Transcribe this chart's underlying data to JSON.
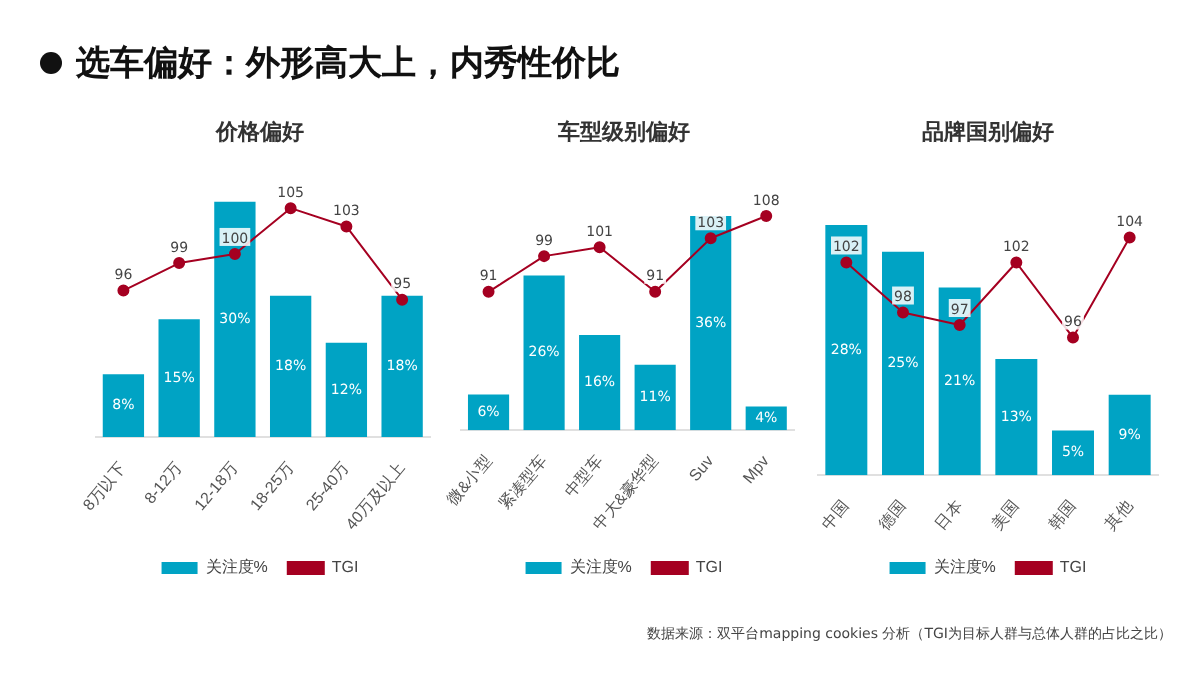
{
  "chart_data": [
    {
      "type": "bar",
      "title": "价格偏好",
      "categories": [
        "8万以下",
        "8-12万",
        "12-18万",
        "18-25万",
        "25-40万",
        "40万及以上"
      ],
      "legend": "bottom",
      "marker": "circle",
      "tick_labels": "x",
      "annotations": [
        "选车偏好：外形高大上，内秀性价比",
        "数据来源：双平台mapping cookies 分析（TGI为目标人群与总体人群的占比之比）"
      ],
      "series": [
        {
          "name": "关注度%",
          "color": "#00a3c4",
          "values": [
            8,
            15,
            30,
            18,
            12,
            18
          ],
          "value_labels": [
            "8%",
            "15%",
            "30%",
            "18%",
            "12%",
            "18%"
          ]
        },
        {
          "name": "TGI",
          "type": "line",
          "axis": "y2",
          "color": "#a50021",
          "values": [
            96,
            99,
            100,
            105,
            103,
            95
          ],
          "value_labels": [
            "96",
            "99",
            "100",
            "105",
            "103",
            "95"
          ]
        }
      ]
    },
    {
      "type": "bar",
      "title": "车型级别偏好",
      "categories": [
        "微&小型",
        "紧凑型车",
        "中型车",
        "中大&豪华型",
        "Suv",
        "Mpv"
      ],
      "legend": "bottom",
      "marker": "circle",
      "tick_labels": "x",
      "series": [
        {
          "name": "关注度%",
          "color": "#00a3c4",
          "values": [
            6,
            26,
            16,
            11,
            36,
            4
          ],
          "value_labels": [
            "6%",
            "26%",
            "16%",
            "11%",
            "36%",
            "4%"
          ]
        },
        {
          "name": "TGI",
          "type": "line",
          "axis": "y2",
          "color": "#a50021",
          "values": [
            91,
            99,
            101,
            91,
            103,
            108
          ],
          "value_labels": [
            "91",
            "99",
            "101",
            "91",
            "103",
            "108"
          ]
        }
      ]
    },
    {
      "type": "bar",
      "title": "品牌国别偏好",
      "categories": [
        "中国",
        "德国",
        "日本",
        "美国",
        "韩国",
        "其他"
      ],
      "legend": "bottom",
      "marker": "circle",
      "tick_labels": "x",
      "series": [
        {
          "name": "关注度%",
          "color": "#00a3c4",
          "values": [
            28,
            25,
            21,
            13,
            5,
            9
          ],
          "value_labels": [
            "28%",
            "25%",
            "21%",
            "13%",
            "5%",
            "9%"
          ]
        },
        {
          "name": "TGI",
          "type": "line",
          "axis": "y2",
          "color": "#a50021",
          "values": [
            102,
            98,
            97,
            102,
            96,
            104
          ],
          "value_labels": [
            "102",
            "98",
            "97",
            "102",
            "96",
            "104"
          ]
        }
      ]
    }
  ]
}
